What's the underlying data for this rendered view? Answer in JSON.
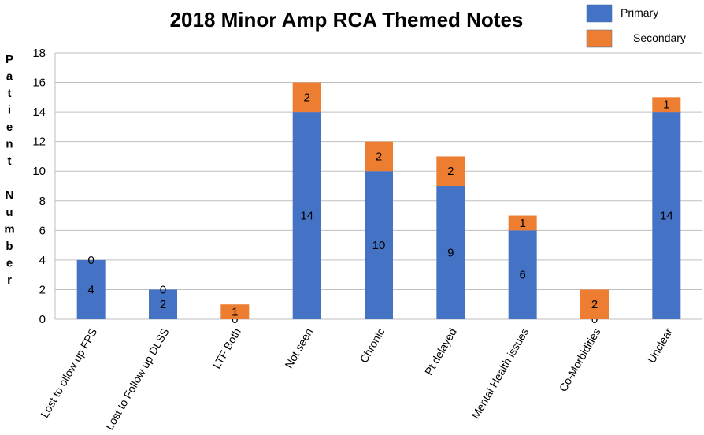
{
  "chart_data": {
    "type": "bar",
    "stacked": true,
    "title": "2018 Minor Amp RCA Themed Notes",
    "ylabel": "Patient Number",
    "xlabel": "",
    "ylim": [
      0,
      18
    ],
    "yticks": [
      0,
      2,
      4,
      6,
      8,
      10,
      12,
      14,
      16,
      18
    ],
    "grid": true,
    "legend_position": "top-right",
    "categories": [
      "Lost to ollow up FPS",
      "Lost to Follow up DLSS",
      "LTF Both",
      "Not seen",
      "Chronic",
      "Pt delayed",
      "Mental Health issues",
      "Co-Morbidities",
      "Unclear"
    ],
    "series": [
      {
        "name": "Primary",
        "color": "#4472C4",
        "values": [
          4,
          2,
          0,
          14,
          10,
          9,
          6,
          0,
          14
        ]
      },
      {
        "name": "Secondary",
        "color": "#ED7D31",
        "values": [
          0,
          0,
          1,
          2,
          2,
          2,
          1,
          2,
          1
        ]
      }
    ]
  }
}
